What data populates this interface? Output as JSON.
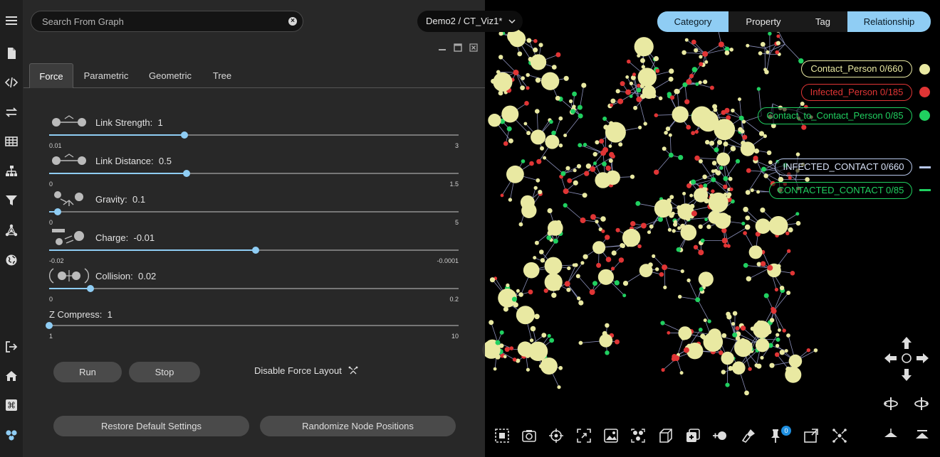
{
  "search": {
    "placeholder": "Search From Graph"
  },
  "breadcrumb": {
    "label": "Demo2 / CT_Viz1*"
  },
  "view_toggle": {
    "items": [
      "Category",
      "Property",
      "Tag",
      "Relationship"
    ],
    "active": [
      "Category",
      "Relationship"
    ]
  },
  "layout_tabs": {
    "items": [
      "Force",
      "Parametric",
      "Geometric",
      "Tree"
    ],
    "active": "Force"
  },
  "params": [
    {
      "label": "Link Strength:",
      "value": "1",
      "min": "0.01",
      "max": "3",
      "fraction": 0.33
    },
    {
      "label": "Link Distance:",
      "value": "0.5",
      "min": "0",
      "max": "1.5",
      "fraction": 0.335
    },
    {
      "label": "Gravity:",
      "value": "0.1",
      "min": "0",
      "max": "5",
      "fraction": 0.02
    },
    {
      "label": "Charge:",
      "value": "-0.01",
      "min": "-0.02",
      "max": "-0.0001",
      "fraction": 0.505
    },
    {
      "label": "Collision:",
      "value": "0.02",
      "min": "0",
      "max": "0.2",
      "fraction": 0.1
    },
    {
      "label": "Z Compress:",
      "value": "1",
      "min": "1",
      "max": "10",
      "fraction": 0.0
    }
  ],
  "buttons": {
    "run": "Run",
    "stop": "Stop",
    "disable_force": "Disable Force Layout",
    "restore": "Restore Default Settings",
    "randomize": "Randomize Node Positions"
  },
  "legend": {
    "categories": [
      {
        "label": "Contact_Person 0/660",
        "color": "#e9e9a2"
      },
      {
        "label": "Infected_Person 0/185",
        "color": "#e03535"
      },
      {
        "label": "Contact_to_Contact_Person 0/85",
        "color": "#20d060"
      }
    ],
    "relationships": [
      {
        "label": "INFECTED_CONTACT 0/660",
        "color": "#b8c8ec"
      },
      {
        "label": "CONTACTED_CONTACT 0/85",
        "color": "#20d060"
      }
    ]
  },
  "toolbar": {
    "pin_count": "0"
  },
  "colors": {
    "accent": "#8fcdf4",
    "node_contact": "#e9e9a2",
    "node_infected": "#e03535",
    "node_c2c": "#20d060",
    "edge": "#8a8fb8"
  },
  "sidebar_icons": [
    "menu-icon",
    "file-icon",
    "code-icon",
    "swap-icon",
    "table-icon",
    "hierarchy-icon",
    "filter-icon",
    "network-icon",
    "globe-icon",
    "logout-icon",
    "home-icon",
    "command-icon",
    "cluster-icon"
  ]
}
